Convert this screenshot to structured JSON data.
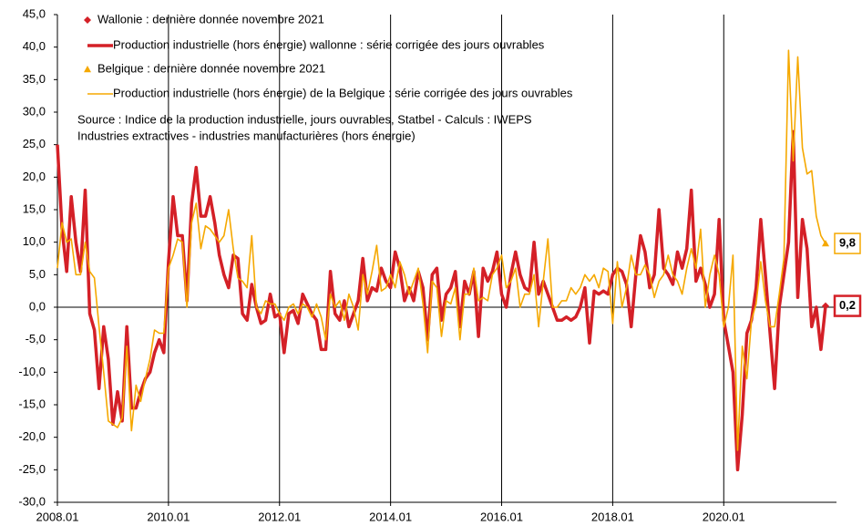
{
  "chart_data": {
    "type": "line",
    "annotations": [
      "Source : Indice de la production industrielle, jours ouvrables, Statbel - Calculs : IWEPS",
      "Industries extractives - industries manufacturières (hors énergie)"
    ],
    "categories": [
      "2008.01",
      null,
      null,
      null,
      null,
      null,
      null,
      null,
      null,
      null,
      null,
      null,
      null,
      null,
      null,
      null,
      null,
      null,
      null,
      null,
      null,
      null,
      null,
      null,
      "2010.01",
      null,
      null,
      null,
      null,
      null,
      null,
      null,
      null,
      null,
      null,
      null,
      null,
      null,
      null,
      null,
      null,
      null,
      null,
      null,
      null,
      null,
      null,
      null,
      "2012.01",
      null,
      null,
      null,
      null,
      null,
      null,
      null,
      null,
      null,
      null,
      null,
      null,
      null,
      null,
      null,
      null,
      null,
      null,
      null,
      null,
      null,
      null,
      null,
      "2014.01",
      null,
      null,
      null,
      null,
      null,
      null,
      null,
      null,
      null,
      null,
      null,
      null,
      null,
      null,
      null,
      null,
      null,
      null,
      null,
      null,
      null,
      null,
      null,
      "2016.01",
      null,
      null,
      null,
      null,
      null,
      null,
      null,
      null,
      null,
      null,
      null,
      null,
      null,
      null,
      null,
      null,
      null,
      null,
      null,
      null,
      null,
      null,
      null,
      "2018.01",
      null,
      null,
      null,
      null,
      null,
      null,
      null,
      null,
      null,
      null,
      null,
      null,
      null,
      null,
      null,
      null,
      null,
      null,
      null,
      null,
      null,
      null,
      null,
      "2020.01",
      null,
      null,
      null,
      null,
      null,
      null,
      null,
      null,
      null,
      null,
      null,
      null,
      null,
      null,
      null,
      null,
      null,
      null,
      null,
      null,
      null,
      null
    ],
    "series": [
      {
        "name": "Production  industrielle (hors énergie) wallonne : série corrigée des jours ouvrables",
        "color": "#d42027",
        "width": 3.5,
        "last_marker": {
          "name": "Wallonie : dernière donnée novembre 2021",
          "shape": "diamond"
        },
        "last_value_label": "0,2",
        "values": [
          25,
          12,
          5.5,
          17,
          10,
          5.5,
          18,
          -1,
          -3.5,
          -12.5,
          -3,
          -8,
          -18,
          -13,
          -17.5,
          -3,
          -15.5,
          -15.5,
          -13,
          -11,
          -10,
          -7,
          -5,
          -7,
          7,
          17,
          11,
          11,
          1,
          16,
          21.5,
          14,
          14,
          17,
          13,
          8,
          5,
          3,
          8,
          7.5,
          -1,
          -2,
          3.5,
          0,
          -2.5,
          -2,
          2,
          -1.5,
          -1,
          -7,
          -1,
          -0.5,
          -2.5,
          2,
          0.5,
          -1,
          -2,
          -6.5,
          -6.5,
          5.5,
          -1,
          -2,
          1,
          -3,
          -1,
          1,
          7.5,
          1,
          3,
          2.5,
          6,
          4,
          3,
          8.5,
          6,
          1,
          3,
          1,
          5.5,
          3,
          -5,
          5,
          6,
          -2,
          2,
          3,
          5.5,
          -3,
          4,
          2,
          5.5,
          -4.5,
          6,
          4,
          5.5,
          8.5,
          2,
          0,
          5,
          8.5,
          5,
          3,
          2.5,
          10,
          2,
          4,
          2,
          0,
          -2,
          -2,
          -1.5,
          -2,
          -1.5,
          0,
          3,
          -5.5,
          2.5,
          2,
          2.5,
          2,
          5,
          6,
          5.5,
          3.5,
          -3,
          5,
          11,
          8.5,
          3,
          5,
          15,
          6,
          5,
          3.5,
          8.5,
          6,
          9,
          18,
          4,
          6,
          3.5,
          0,
          2,
          13.5,
          -2,
          -6,
          -10,
          -25,
          -16.5,
          -4,
          -2,
          3,
          13.5,
          5,
          -4,
          -12.5,
          0,
          5,
          10,
          27,
          1.5,
          13.5,
          9,
          -3,
          0,
          -6.5,
          0.2
        ]
      },
      {
        "name": "Production industrielle (hors énergie) de la Belgique : série corrigée des jours ouvrables",
        "color": "#f5a800",
        "width": 1.6,
        "last_marker": {
          "name": "Belgique : dernière donnée novembre 2021",
          "shape": "triangle"
        },
        "last_value_label": "9,8",
        "values": [
          6,
          13,
          10,
          10.5,
          5,
          5,
          10,
          5.5,
          4.5,
          -3,
          -10,
          -17.5,
          -18,
          -18.5,
          -17,
          -6,
          -19,
          -12,
          -14.5,
          -11,
          -8,
          -3.5,
          -4,
          -4,
          6,
          8,
          10.5,
          10,
          0,
          13,
          16,
          9,
          12.5,
          12,
          11,
          10,
          11,
          15,
          9,
          4.5,
          4,
          3,
          11,
          0,
          -1,
          1,
          0.5,
          0.5,
          -1,
          -2,
          0,
          0.5,
          -1,
          0.5,
          0,
          -1.5,
          0.5,
          -1.5,
          -5,
          2,
          0,
          1,
          -2,
          2,
          0,
          -3.5,
          5,
          2,
          5.5,
          9.5,
          2.5,
          3,
          5,
          3,
          7,
          5,
          2,
          4,
          6,
          0.5,
          -7,
          4,
          3,
          -4.5,
          1,
          0.5,
          3,
          -5,
          2,
          2,
          6,
          1,
          1.5,
          1,
          5,
          6,
          8,
          3,
          4,
          6,
          0,
          2,
          2,
          5,
          -3,
          4,
          10.5,
          0,
          0,
          1,
          1,
          3,
          2,
          3,
          5,
          4,
          5,
          3,
          6,
          5.5,
          -2.5,
          7,
          0,
          3,
          8,
          5,
          5,
          6.5,
          5,
          1.5,
          4,
          5,
          8,
          5,
          4,
          2,
          6,
          9,
          6,
          12,
          0,
          5,
          8,
          5,
          -3,
          0,
          8,
          -22,
          -6,
          -11,
          -2,
          0.5,
          7,
          1,
          -3,
          -3,
          2,
          7.5,
          39.5,
          22.5,
          38.5,
          24.5,
          20.5,
          21,
          14,
          11,
          9.8
        ]
      }
    ],
    "ylim": [
      -30,
      45
    ],
    "yticks": [
      {
        "value": -30,
        "label": "-30,0"
      },
      {
        "value": -25,
        "label": "-25,0"
      },
      {
        "value": -20,
        "label": "-20,0"
      },
      {
        "value": -15,
        "label": "-15,0"
      },
      {
        "value": -10,
        "label": "-10,0"
      },
      {
        "value": -5,
        "label": "-5,0"
      },
      {
        "value": 0,
        "label": "0,0"
      },
      {
        "value": 5,
        "label": "5,0"
      },
      {
        "value": 10,
        "label": "10,0"
      },
      {
        "value": 15,
        "label": "15,0"
      },
      {
        "value": 20,
        "label": "20,0"
      },
      {
        "value": 25,
        "label": "25,0"
      },
      {
        "value": 30,
        "label": "30,0"
      },
      {
        "value": 35,
        "label": "35,0"
      },
      {
        "value": 40,
        "label": "40,0"
      },
      {
        "value": 45,
        "label": "45,0"
      }
    ],
    "vertical_grid": true
  }
}
